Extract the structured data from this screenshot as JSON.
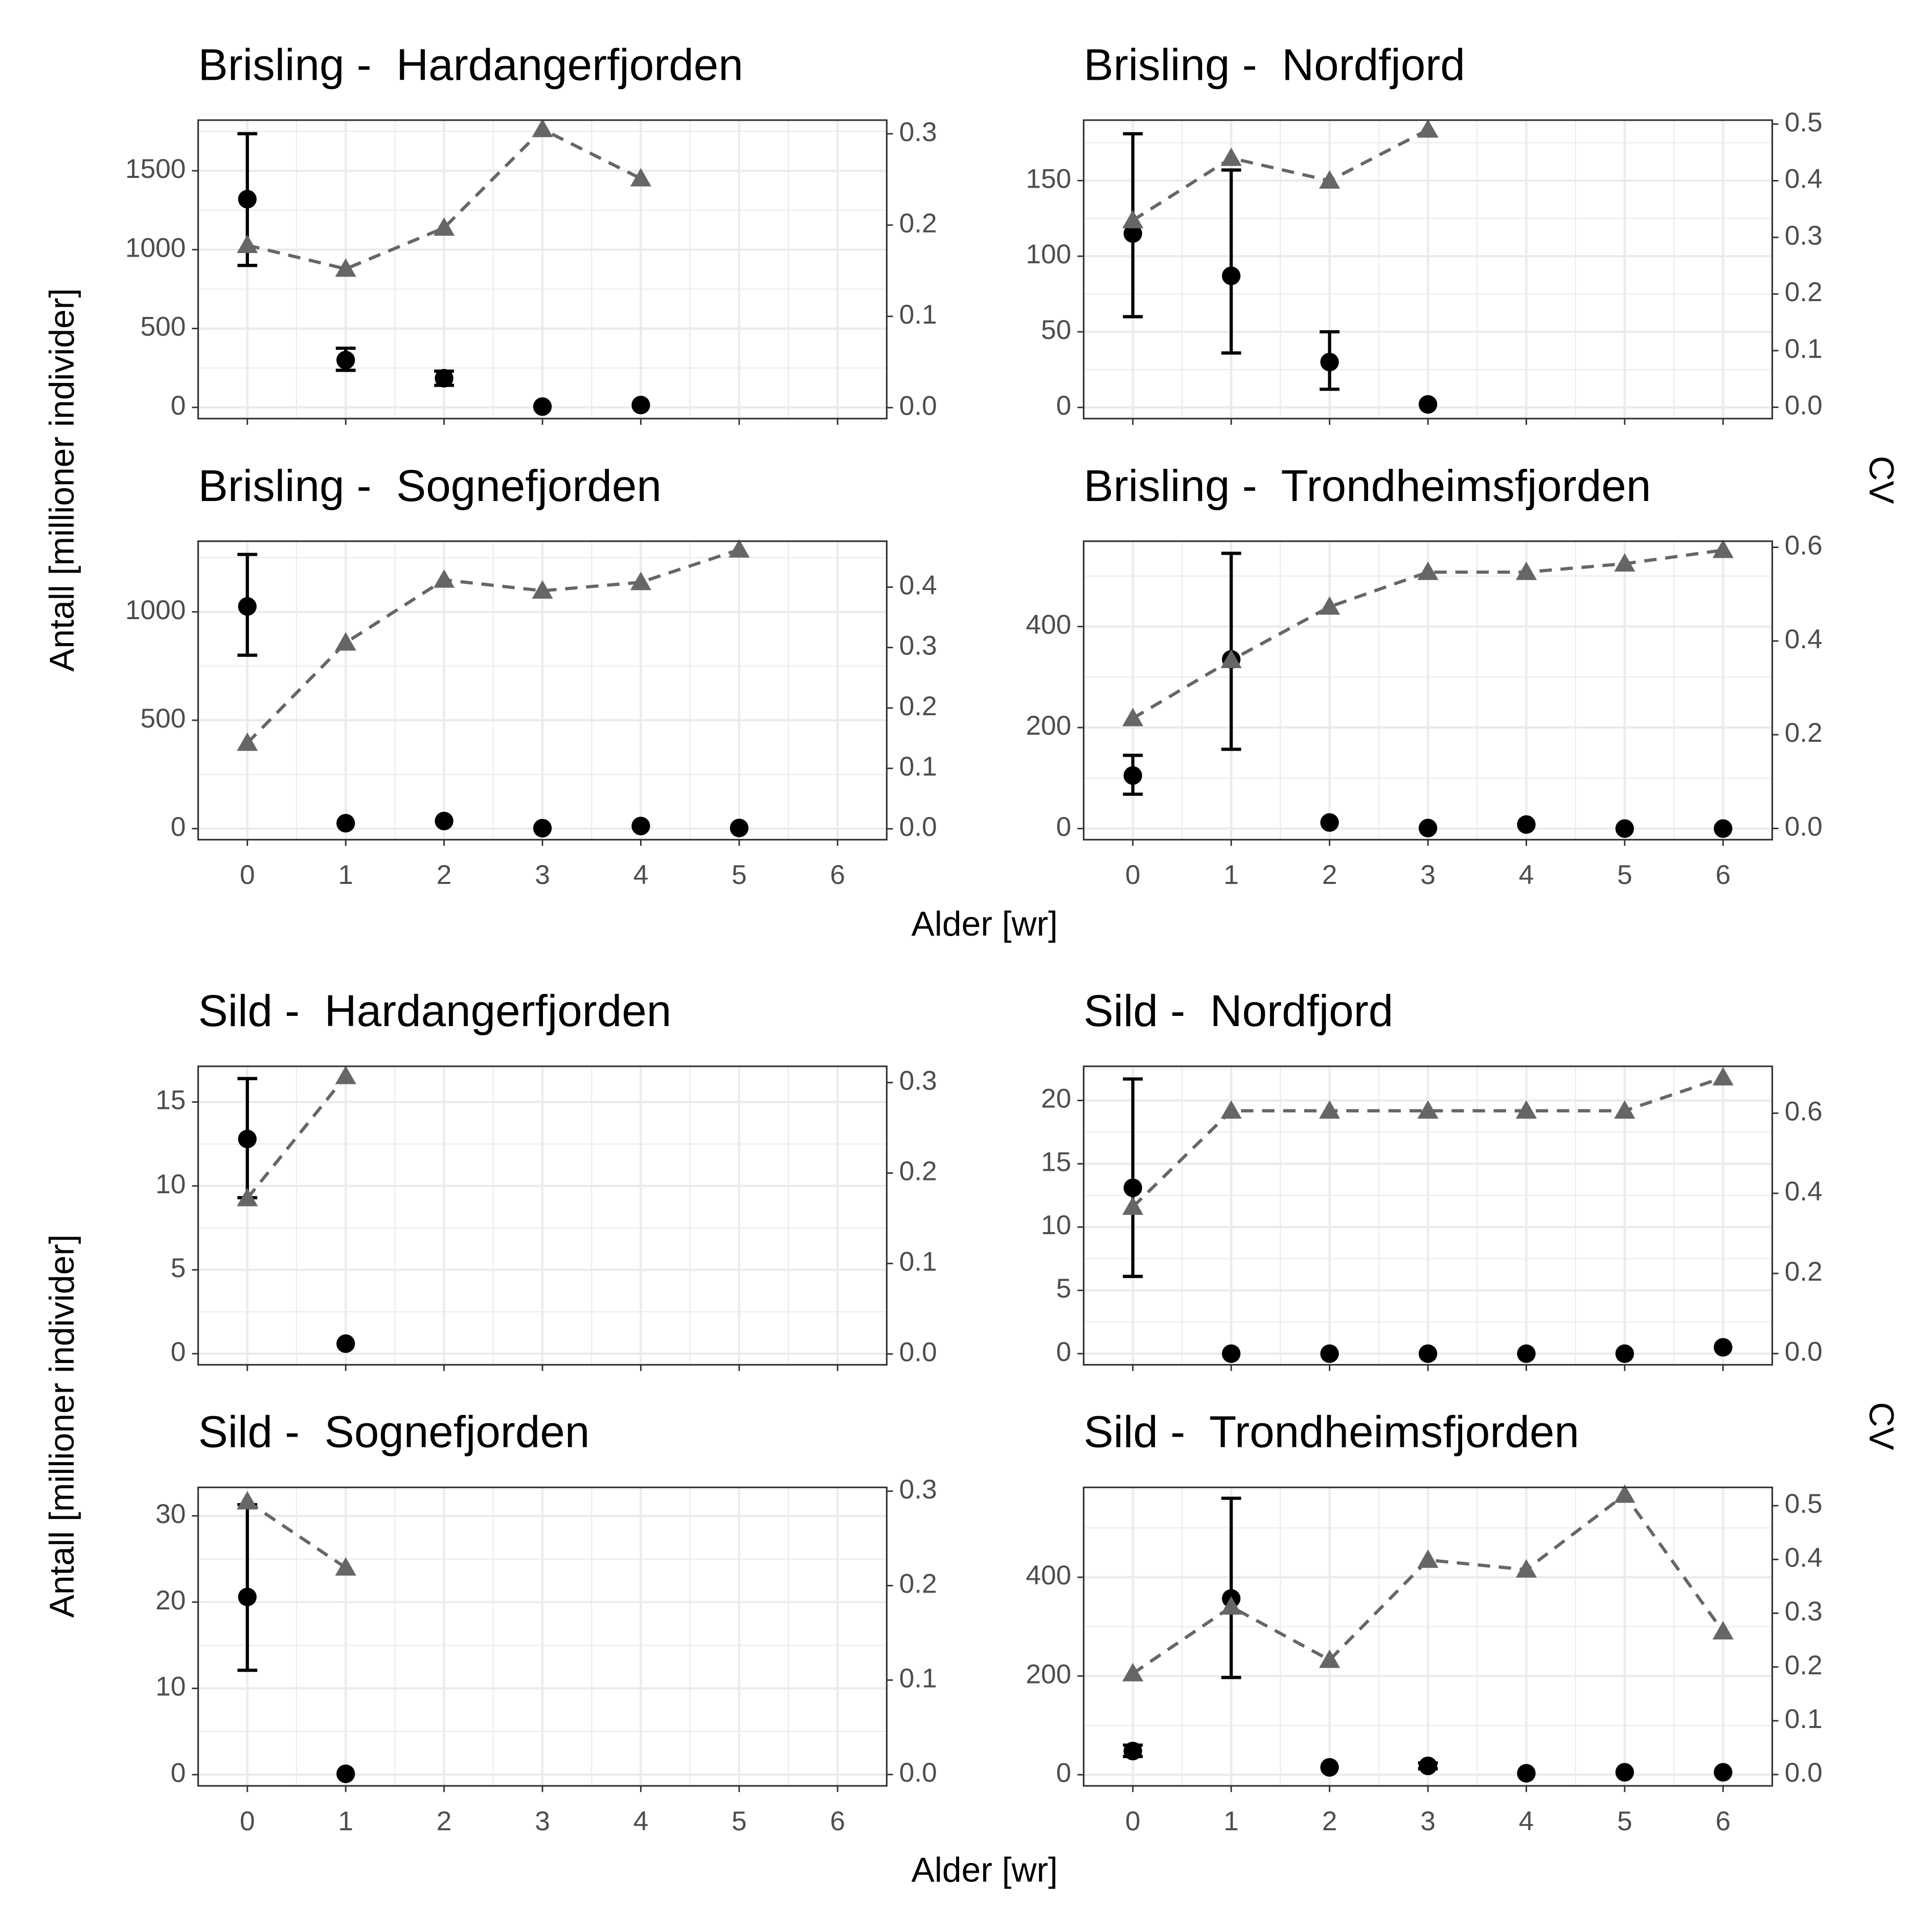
{
  "chart_data": [
    {
      "type": "point_errorbar_cv",
      "title": "Brisling -  Hardangerfjorden",
      "show_xticklabels": false,
      "x": [
        0,
        1,
        2,
        3,
        4,
        5,
        6
      ],
      "xlim": [
        -0.5,
        6.5
      ],
      "xticks": [
        0,
        1,
        2,
        3,
        4,
        5,
        6
      ],
      "ylim": [
        -71,
        1821
      ],
      "yticks": [
        0,
        500,
        1000,
        1500
      ],
      "y2lim": [
        -0.012,
        0.315
      ],
      "y2ticks": [
        {
          "value": 0,
          "label": "0.0"
        },
        0.1,
        0.2,
        0.3
      ],
      "grid": true,
      "series": [
        {
          "color": "#000000",
          "values": [
            1320,
            300,
            185,
            5,
            15,
            null,
            null
          ],
          "lower": [
            900,
            235,
            140,
            null,
            null,
            null,
            null
          ],
          "upper": [
            1735,
            375,
            230,
            null,
            null,
            null,
            null
          ]
        },
        {
          "color": "#666666",
          "axis": "y2",
          "values": [
            0.178,
            0.152,
            0.197,
            0.305,
            0.251,
            null,
            null
          ]
        }
      ]
    },
    {
      "type": "point_errorbar_cv",
      "title": "Brisling -  Nordfjord",
      "show_xticklabels": false,
      "x": [
        0,
        1,
        2,
        3,
        4,
        5,
        6
      ],
      "xlim": [
        -0.5,
        6.5
      ],
      "xticks": [
        0,
        1,
        2,
        3,
        4,
        5,
        6
      ],
      "ylim": [
        -7.4,
        190
      ],
      "yticks": [
        0,
        50,
        100,
        150
      ],
      "y2lim": [
        -0.02,
        0.507
      ],
      "y2ticks": [
        {
          "value": 0,
          "label": "0.0"
        },
        0.1,
        0.2,
        0.3,
        0.4,
        0.5
      ],
      "grid": true,
      "series": [
        {
          "color": "#000000",
          "values": [
            115,
            87,
            30,
            2,
            null,
            null,
            null
          ],
          "lower": [
            60,
            36,
            12,
            null,
            null,
            null,
            null
          ],
          "upper": [
            181,
            157,
            50,
            null,
            null,
            null,
            null
          ]
        },
        {
          "color": "#666666",
          "axis": "y2",
          "values": [
            0.33,
            0.44,
            0.4,
            0.49,
            null,
            null,
            null
          ]
        }
      ]
    },
    {
      "type": "point_errorbar_cv",
      "title": "Brisling -  Sognefjorden",
      "show_xticklabels": true,
      "x": [
        0,
        1,
        2,
        3,
        4,
        5,
        6
      ],
      "xlim": [
        -0.5,
        6.5
      ],
      "xticks": [
        0,
        1,
        2,
        3,
        4,
        5,
        6
      ],
      "ylim": [
        -51,
        1326
      ],
      "yticks": [
        0,
        500,
        1000
      ],
      "y2lim": [
        -0.018,
        0.476
      ],
      "y2ticks": [
        {
          "value": 0,
          "label": "0.0"
        },
        0.1,
        0.2,
        0.3,
        0.4
      ],
      "grid": true,
      "series": [
        {
          "color": "#000000",
          "values": [
            1025,
            25,
            35,
            2,
            12,
            3,
            null
          ],
          "lower": [
            800,
            null,
            null,
            null,
            null,
            null,
            null
          ],
          "upper": [
            1265,
            null,
            null,
            null,
            null,
            null,
            null
          ]
        },
        {
          "color": "#666666",
          "axis": "y2",
          "values": [
            0.142,
            0.308,
            0.412,
            0.394,
            0.408,
            0.462,
            null
          ]
        }
      ]
    },
    {
      "type": "point_errorbar_cv",
      "title": "Brisling -  Trondheimsfjorden",
      "show_xticklabels": true,
      "x": [
        0,
        1,
        2,
        3,
        4,
        5,
        6
      ],
      "xlim": [
        -0.5,
        6.5
      ],
      "xticks": [
        0,
        1,
        2,
        3,
        4,
        5,
        6
      ],
      "ylim": [
        -22,
        569
      ],
      "yticks": [
        0,
        200,
        400
      ],
      "y2lim": [
        -0.024,
        0.613
      ],
      "y2ticks": [
        {
          "value": 0,
          "label": "0.0"
        },
        0.2,
        0.4,
        0.6
      ],
      "grid": true,
      "series": [
        {
          "color": "#000000",
          "values": [
            105,
            335,
            12,
            1,
            8,
            0,
            0
          ],
          "lower": [
            68,
            157,
            null,
            null,
            null,
            null,
            null
          ],
          "upper": [
            145,
            545,
            null,
            null,
            null,
            null,
            null
          ]
        },
        {
          "color": "#666666",
          "axis": "y2",
          "values": [
            0.235,
            0.359,
            0.473,
            0.547,
            0.547,
            0.565,
            0.594
          ]
        }
      ]
    },
    {
      "type": "point_errorbar_cv",
      "title": "Sild -  Hardangerfjorden",
      "show_xticklabels": false,
      "x": [
        0,
        1,
        2,
        3,
        4,
        5,
        6
      ],
      "xlim": [
        -0.5,
        6.5
      ],
      "xticks": [
        0,
        1,
        2,
        3,
        4,
        5,
        6
      ],
      "ylim": [
        -0.66,
        17.13
      ],
      "yticks": [
        0,
        5,
        10,
        15
      ],
      "y2lim": [
        -0.012,
        0.318
      ],
      "y2ticks": [
        {
          "value": 0,
          "label": "0.0"
        },
        0.1,
        0.2,
        0.3
      ],
      "grid": true,
      "series": [
        {
          "color": "#000000",
          "values": [
            12.8,
            0.6,
            null,
            null,
            null,
            null,
            null
          ],
          "lower": [
            9.3,
            null,
            null,
            null,
            null,
            null,
            null
          ],
          "upper": [
            16.4,
            null,
            null,
            null,
            null,
            null,
            null
          ]
        },
        {
          "color": "#666666",
          "axis": "y2",
          "values": [
            0.172,
            0.307,
            null,
            null,
            null,
            null,
            null
          ]
        }
      ]
    },
    {
      "type": "point_errorbar_cv",
      "title": "Sild -  Nordfjord",
      "show_xticklabels": false,
      "x": [
        0,
        1,
        2,
        3,
        4,
        5,
        6
      ],
      "xlim": [
        -0.5,
        6.5
      ],
      "xticks": [
        0,
        1,
        2,
        3,
        4,
        5,
        6
      ],
      "ylim": [
        -0.88,
        22.7
      ],
      "yticks": [
        0,
        5,
        10,
        15,
        20
      ],
      "y2lim": [
        -0.028,
        0.717
      ],
      "y2ticks": [
        {
          "value": 0,
          "label": "0.0"
        },
        0.2,
        0.4,
        0.6
      ],
      "grid": true,
      "series": [
        {
          "color": "#000000",
          "values": [
            13.1,
            0,
            0,
            0,
            0,
            0,
            0.5
          ],
          "lower": [
            6.1,
            null,
            null,
            null,
            null,
            null,
            null
          ],
          "upper": [
            21.7,
            null,
            null,
            null,
            null,
            null,
            null
          ]
        },
        {
          "color": "#666666",
          "axis": "y2",
          "values": [
            0.366,
            0.606,
            0.606,
            0.606,
            0.606,
            0.606,
            0.689
          ]
        }
      ]
    },
    {
      "type": "point_errorbar_cv",
      "title": "Sild -  Sognefjorden",
      "show_xticklabels": true,
      "x": [
        0,
        1,
        2,
        3,
        4,
        5,
        6
      ],
      "xlim": [
        -0.5,
        6.5
      ],
      "xticks": [
        0,
        1,
        2,
        3,
        4,
        5,
        6
      ],
      "ylim": [
        -1.3,
        33.3
      ],
      "yticks": [
        0,
        10,
        20,
        30
      ],
      "y2lim": [
        -0.012,
        0.304
      ],
      "y2ticks": [
        {
          "value": 0,
          "label": "0.0"
        },
        0.1,
        0.2,
        0.3
      ],
      "grid": true,
      "series": [
        {
          "color": "#000000",
          "values": [
            20.6,
            0.1,
            null,
            null,
            null,
            null,
            null
          ],
          "lower": [
            12.1,
            null,
            null,
            null,
            null,
            null,
            null
          ],
          "upper": [
            31.3,
            null,
            null,
            null,
            null,
            null,
            null
          ]
        },
        {
          "color": "#666666",
          "axis": "y2",
          "values": [
            0.289,
            0.219,
            null,
            null,
            null,
            null,
            null
          ]
        }
      ]
    },
    {
      "type": "point_errorbar_cv",
      "title": "Sild -  Trondheimsfjorden",
      "show_xticklabels": true,
      "x": [
        0,
        1,
        2,
        3,
        4,
        5,
        6
      ],
      "xlim": [
        -0.5,
        6.5
      ],
      "xticks": [
        0,
        1,
        2,
        3,
        4,
        5,
        6
      ],
      "ylim": [
        -22.5,
        582
      ],
      "yticks": [
        0,
        200,
        400
      ],
      "y2lim": [
        -0.021,
        0.534
      ],
      "y2ticks": [
        {
          "value": 0,
          "label": "0.0"
        },
        0.1,
        0.2,
        0.3,
        0.4,
        0.5
      ],
      "grid": true,
      "series": [
        {
          "color": "#000000",
          "values": [
            48,
            357,
            15,
            18,
            3,
            5,
            5
          ],
          "lower": [
            37,
            197,
            null,
            12,
            null,
            null,
            null
          ],
          "upper": [
            60,
            560,
            null,
            24,
            null,
            null,
            null
          ]
        },
        {
          "color": "#666666",
          "axis": "y2",
          "values": [
            0.188,
            0.312,
            0.213,
            0.399,
            0.381,
            0.52,
            0.266
          ]
        }
      ]
    }
  ],
  "groups": [
    {
      "ylabel": "Antall [millioner individer]",
      "xlabel": "Alder [wr]",
      "y2label": "CV"
    },
    {
      "ylabel": "Antall [millioner individer]",
      "xlabel": "Alder [wr]",
      "y2label": "CV"
    }
  ]
}
